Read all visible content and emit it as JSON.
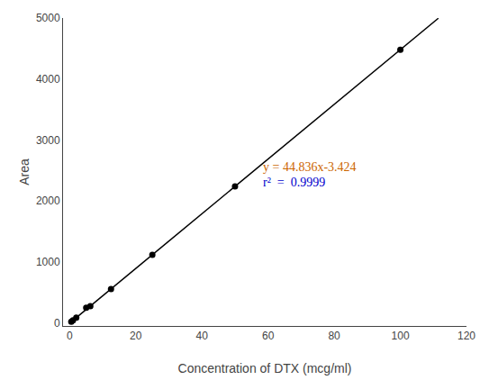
{
  "chart_data": {
    "type": "scatter",
    "xlabel": "Concentration of DTX (mcg/ml)",
    "ylabel": "Area",
    "series": [
      {
        "type": "scatter",
        "color": "#000000",
        "x": [
          0.5,
          1,
          2,
          5,
          6.25,
          12.5,
          25,
          50,
          100
        ],
        "values": [
          19.0,
          41.4,
          86.2,
          247.4,
          276.6,
          556.6,
          1116.5,
          2238.4,
          4480.2
        ]
      },
      {
        "type": "line",
        "color": "#000000",
        "x": [
          0,
          111.5
        ],
        "values": [
          -3.424,
          4995.79
        ]
      }
    ],
    "xlim": [
      -2,
      120
    ],
    "ylim": [
      -50,
      5000
    ],
    "xticks": [
      0,
      20,
      40,
      60,
      80,
      100,
      120
    ],
    "yticks": [
      0,
      1000,
      2000,
      3000,
      4000,
      5000
    ],
    "grid": false,
    "annotations": [
      {
        "text": "y = 44.836x-3.424",
        "x": 58,
        "y": 2420,
        "color": "#cc6600"
      },
      {
        "text": "r²  =  0.9999",
        "x": 58,
        "y": 2160,
        "color": "#0000cc"
      }
    ]
  }
}
